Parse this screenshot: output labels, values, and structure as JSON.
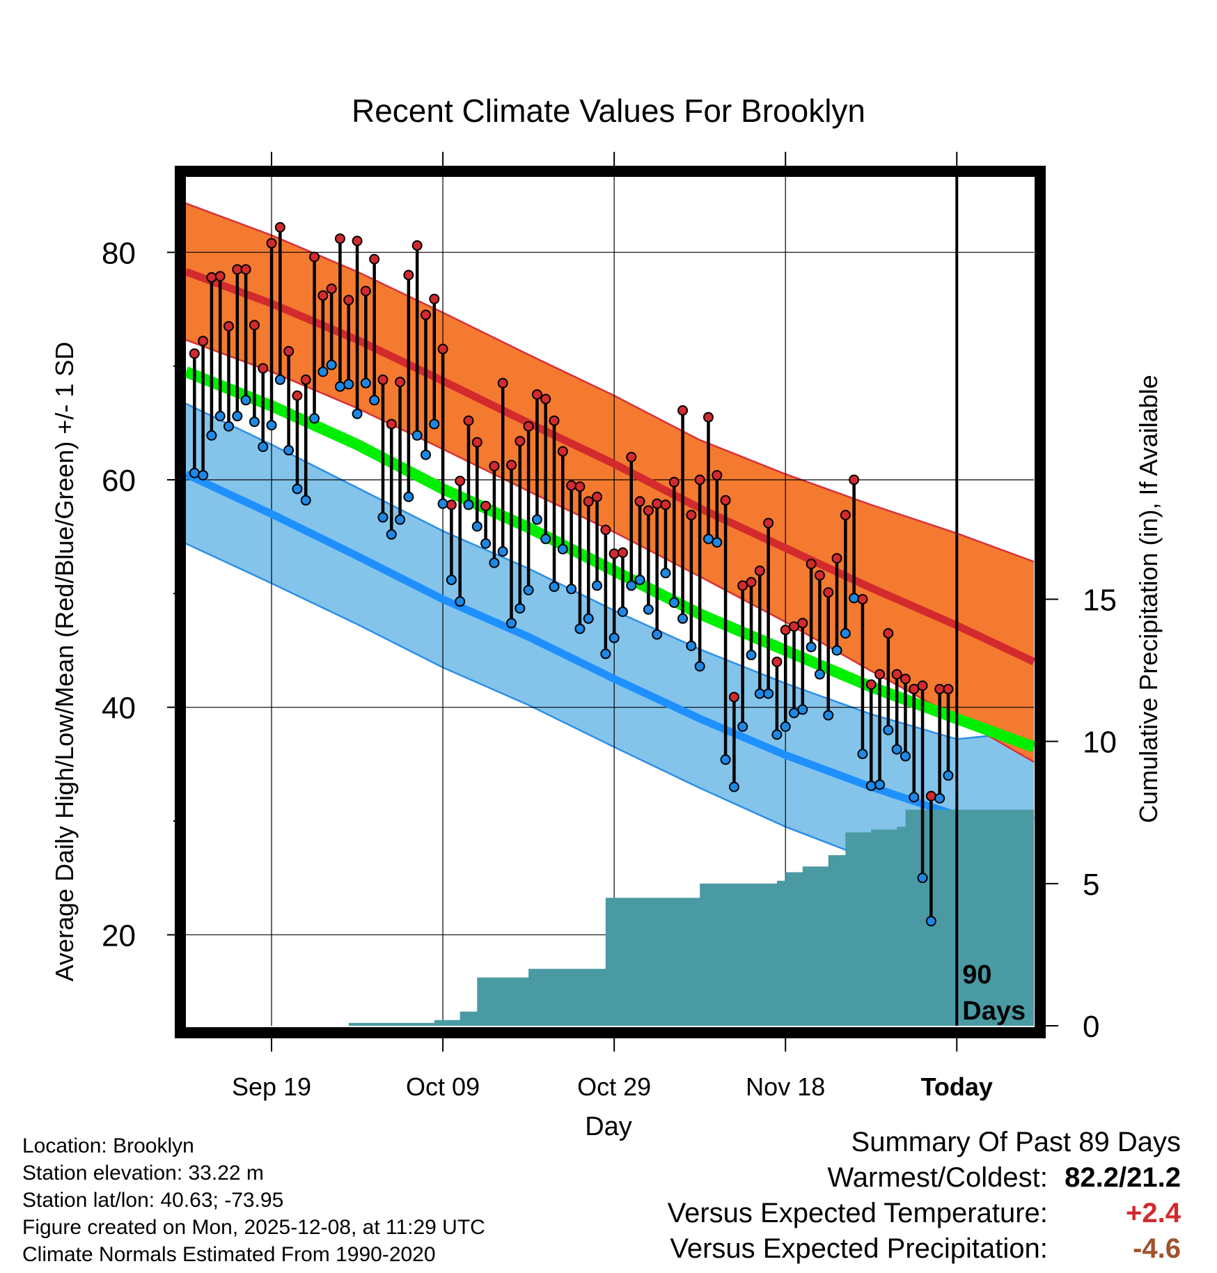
{
  "colors": {
    "record_band": "#f47a30",
    "record_band_edge": "#d8303a",
    "normal_high": "#d32a2e",
    "normal_mean": "#00ee00",
    "normal_low": "#1e90ff",
    "low_band": "#84c4ea",
    "low_band_edge": "#2a8fe8",
    "mean_below": "#a01818",
    "precip": "#4a9aa4",
    "high_dot": "#d32a2e",
    "low_dot": "#1e88e5",
    "warm_text": "#d32a2e",
    "dry_text": "#a0522d"
  },
  "chart_data": {
    "type": "climate-range",
    "title": "Recent Climate Values For Brooklyn",
    "xlabel": "Day",
    "ylabel_left": "Average Daily High/Low/Mean (Red/Blue/Green) +/- 1 SD",
    "ylabel_right": "Cumulative Precipitation (in), If Available",
    "x_range_days": [
      -90,
      9
    ],
    "x_ticks": [
      {
        "day": -80,
        "label": "Sep 19"
      },
      {
        "day": -60,
        "label": "Oct 09"
      },
      {
        "day": -40,
        "label": "Oct 29"
      },
      {
        "day": -20,
        "label": "Nov 18"
      },
      {
        "day": 0,
        "label": "Today"
      }
    ],
    "temp_ylim": [
      12,
      87
    ],
    "temp_ticks": [
      20,
      40,
      60,
      80
    ],
    "precip_ylim": [
      0,
      30
    ],
    "precip_ticks": [
      0,
      5,
      10,
      15
    ],
    "marker_label": "90 Days",
    "normals": {
      "days": [
        -90,
        -80,
        -70,
        -60,
        -50,
        -40,
        -30,
        -20,
        -10,
        0,
        9
      ],
      "high_mean": [
        78.3,
        75.5,
        72.3,
        68.7,
        65.0,
        61.4,
        57.5,
        54.0,
        50.5,
        47.2,
        44.0
      ],
      "high_sd_up": [
        84.3,
        81.5,
        78.3,
        74.7,
        71.0,
        67.4,
        63.5,
        60.5,
        57.8,
        55.3,
        52.8
      ],
      "high_sd_down": [
        72.3,
        69.5,
        66.3,
        62.7,
        59.0,
        55.4,
        51.5,
        47.5,
        43.2,
        39.1,
        35.2
      ],
      "mean": [
        69.5,
        66.5,
        63.1,
        59.2,
        55.8,
        52.0,
        48.2,
        45.0,
        41.8,
        39.0,
        36.5
      ],
      "low_mean": [
        60.5,
        57.0,
        53.3,
        49.5,
        46.2,
        42.5,
        39.0,
        35.8,
        33.0,
        30.5,
        30.0
      ],
      "low_sd_up": [
        66.7,
        63.1,
        59.3,
        55.5,
        52.2,
        48.5,
        45.1,
        42.1,
        39.4,
        37.2,
        37.9
      ],
      "low_sd_down": [
        54.4,
        50.9,
        47.3,
        43.5,
        40.2,
        36.5,
        32.9,
        29.5,
        26.6,
        23.8,
        22.2
      ]
    },
    "daily": {
      "start_day": -89,
      "high": [
        71.1,
        72.2,
        77.8,
        77.9,
        73.5,
        78.5,
        78.5,
        73.6,
        69.8,
        80.8,
        82.2,
        71.3,
        67.4,
        68.8,
        79.6,
        76.2,
        76.8,
        81.2,
        75.8,
        81.0,
        76.6,
        79.4,
        68.8,
        64.9,
        68.6,
        78.0,
        80.6,
        74.5,
        75.9,
        71.5,
        57.8,
        59.9,
        65.2,
        63.3,
        57.7,
        61.2,
        68.5,
        61.3,
        63.4,
        64.7,
        67.5,
        67.1,
        65.2,
        62.5,
        59.5,
        59.4,
        58.1,
        58.5,
        55.6,
        53.5,
        53.6,
        62.0,
        58.1,
        57.3,
        57.9,
        57.8,
        59.8,
        66.1,
        56.9,
        60.0,
        65.5,
        60.4,
        58.2,
        40.9,
        50.7,
        51.0,
        52.0,
        56.2,
        44.0,
        46.8,
        47.1,
        47.4,
        52.6,
        51.6,
        50.1,
        53.1,
        56.9,
        60.0,
        49.5,
        42.0,
        42.9,
        46.5,
        42.9,
        42.5,
        41.6,
        41.9,
        32.2,
        41.6,
        41.6
      ],
      "low": [
        60.6,
        60.4,
        63.9,
        65.6,
        64.7,
        65.6,
        67.0,
        65.1,
        62.9,
        64.8,
        68.8,
        62.6,
        59.2,
        58.2,
        65.4,
        69.5,
        70.1,
        68.2,
        68.4,
        65.8,
        68.5,
        67.0,
        56.7,
        55.2,
        56.5,
        58.5,
        63.9,
        62.2,
        64.9,
        57.9,
        51.2,
        49.3,
        57.8,
        55.9,
        54.4,
        52.7,
        53.7,
        47.4,
        48.7,
        50.3,
        56.5,
        54.8,
        50.6,
        53.9,
        50.4,
        46.9,
        47.8,
        50.7,
        44.7,
        46.1,
        48.4,
        50.7,
        51.2,
        48.6,
        46.4,
        51.8,
        49.2,
        47.8,
        45.4,
        43.6,
        54.8,
        54.5,
        35.4,
        33.0,
        38.3,
        44.6,
        41.2,
        41.2,
        37.6,
        38.3,
        39.5,
        39.8,
        45.3,
        42.9,
        39.3,
        45.0,
        46.5,
        49.6,
        35.9,
        33.1,
        33.2,
        38.0,
        36.3,
        35.7,
        32.1,
        25.0,
        21.2,
        32.0,
        34.0
      ]
    },
    "precip": [
      {
        "day": -90,
        "value": 0.0
      },
      {
        "day": -72,
        "value": 0.0
      },
      {
        "day": -71,
        "value": 0.1
      },
      {
        "day": -62,
        "value": 0.1
      },
      {
        "day": -61,
        "value": 0.2
      },
      {
        "day": -59,
        "value": 0.2
      },
      {
        "day": -58,
        "value": 0.5
      },
      {
        "day": -56,
        "value": 1.7
      },
      {
        "day": -51,
        "value": 1.7
      },
      {
        "day": -50,
        "value": 2.0
      },
      {
        "day": -42,
        "value": 2.0
      },
      {
        "day": -41,
        "value": 4.5
      },
      {
        "day": -31,
        "value": 4.5
      },
      {
        "day": -30,
        "value": 5.0
      },
      {
        "day": -21,
        "value": 5.1
      },
      {
        "day": -20,
        "value": 5.4
      },
      {
        "day": -18,
        "value": 5.6
      },
      {
        "day": -15,
        "value": 6.0
      },
      {
        "day": -13,
        "value": 6.8
      },
      {
        "day": -10,
        "value": 6.9
      },
      {
        "day": -7,
        "value": 7.0
      },
      {
        "day": -6,
        "value": 7.6
      },
      {
        "day": 9,
        "value": 7.6
      }
    ]
  },
  "footer": {
    "location": "Location: Brooklyn",
    "elevation": "Station elevation: 33.22 m",
    "latlon": "Station lat/lon: 40.63; -73.95",
    "created": "Figure created on Mon, 2025-12-08, at 11:29 UTC",
    "normals": "Climate Normals Estimated From 1990-2020"
  },
  "summary": {
    "title": "Summary Of Past 89 Days",
    "warmest_label": "Warmest/Coldest:",
    "warmest_value": "82.2/21.2",
    "temp_label": "Versus Expected Temperature:",
    "temp_value": "+2.4",
    "precip_label": "Versus Expected Precipitation:",
    "precip_value": "-4.6"
  }
}
